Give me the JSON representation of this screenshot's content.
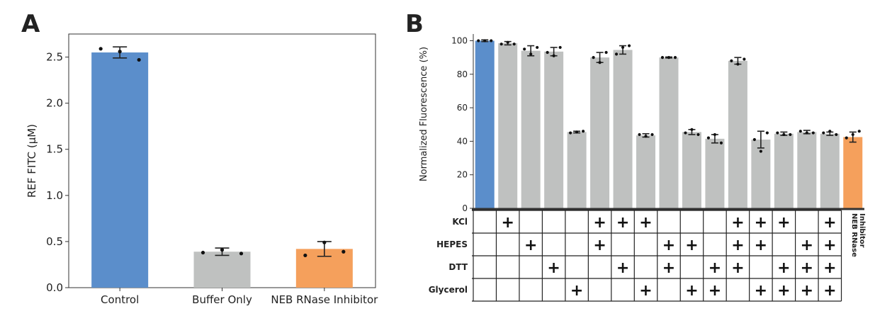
{
  "chart_data": [
    {
      "panel": "A",
      "type": "bar",
      "categories": [
        "Control",
        "Buffer Only",
        "NEB RNase Inhibitor"
      ],
      "values": [
        2.55,
        0.39,
        0.42
      ],
      "errors": [
        0.06,
        0.04,
        0.08
      ],
      "points": [
        [
          2.59,
          2.56,
          2.47
        ],
        [
          0.38,
          0.41,
          0.37
        ],
        [
          0.35,
          0.49,
          0.39
        ]
      ],
      "colors": [
        "#5b8ecb",
        "#bfc1c0",
        "#f5a05c"
      ],
      "xlabel": "",
      "ylabel": "REF FITC (µM)",
      "ylim": [
        0,
        2.75
      ],
      "yticks": [
        "0.0",
        "0.5",
        "1.0",
        "1.5",
        "2.0",
        "2.5"
      ]
    },
    {
      "panel": "B",
      "type": "bar",
      "values": [
        100,
        98.5,
        94,
        93.5,
        45.5,
        90,
        94.5,
        43.5,
        90,
        45.5,
        41.5,
        88,
        41,
        44.5,
        45.5,
        44.5,
        42.5
      ],
      "errors": [
        0.5,
        1.0,
        3.0,
        2.5,
        0.5,
        3.0,
        2.5,
        1.0,
        0.3,
        1.5,
        2.5,
        2.0,
        5.0,
        1.0,
        1.0,
        1.0,
        3.0
      ],
      "points": [
        [
          100,
          100,
          100
        ],
        [
          98,
          99,
          98
        ],
        [
          95,
          92,
          96
        ],
        [
          93,
          91,
          96
        ],
        [
          45,
          45.5,
          46
        ],
        [
          90,
          87,
          93
        ],
        [
          92,
          96,
          97
        ],
        [
          44,
          43,
          44
        ],
        [
          90,
          90,
          90
        ],
        [
          45,
          47,
          44
        ],
        [
          42,
          44,
          39
        ],
        [
          88,
          86,
          89
        ],
        [
          41,
          34,
          45
        ],
        [
          45,
          44,
          44
        ],
        [
          46,
          45,
          45
        ],
        [
          45,
          46,
          44
        ],
        [
          42,
          44,
          46
        ]
      ],
      "colors": [
        "#5b8ecb",
        "#bfc1c0",
        "#bfc1c0",
        "#bfc1c0",
        "#bfc1c0",
        "#bfc1c0",
        "#bfc1c0",
        "#bfc1c0",
        "#bfc1c0",
        "#bfc1c0",
        "#bfc1c0",
        "#bfc1c0",
        "#bfc1c0",
        "#bfc1c0",
        "#bfc1c0",
        "#bfc1c0",
        "#f5a05c"
      ],
      "ylabel": "Normalized Fluorescence (%)",
      "ylim": [
        0,
        100
      ],
      "yticks": [
        "0",
        "20",
        "40",
        "60",
        "80",
        "100"
      ],
      "matrix": {
        "rows": [
          "KCl",
          "HEPES",
          "DTT",
          "Glycerol"
        ],
        "plus_symbol": "+",
        "cells": [
          [
            false,
            true,
            false,
            false,
            false,
            true,
            true,
            true,
            false,
            false,
            false,
            true,
            true,
            true,
            false,
            true
          ],
          [
            false,
            false,
            true,
            false,
            false,
            true,
            false,
            false,
            true,
            true,
            false,
            true,
            true,
            false,
            true,
            true
          ],
          [
            false,
            false,
            false,
            true,
            false,
            false,
            true,
            false,
            true,
            false,
            true,
            true,
            false,
            true,
            true,
            true
          ],
          [
            false,
            false,
            false,
            false,
            true,
            false,
            false,
            true,
            false,
            true,
            true,
            false,
            true,
            true,
            true,
            true
          ]
        ],
        "side_label_1": "NEB RNase",
        "side_label_2": "Inhibitor"
      }
    }
  ]
}
